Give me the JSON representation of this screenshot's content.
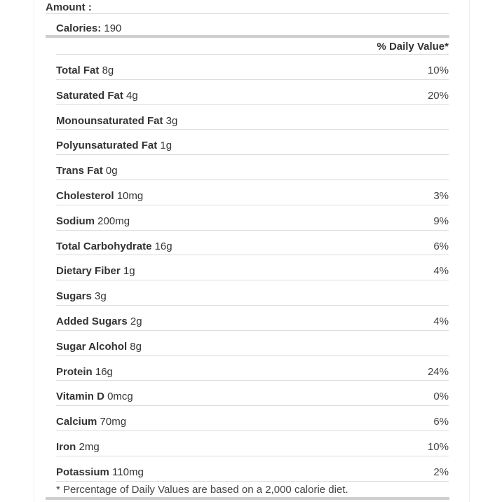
{
  "amount_label": "Amount :",
  "calories": {
    "label": "Calories:",
    "value": "190"
  },
  "daily_value_header": "% Daily Value*",
  "nutrients": [
    {
      "name": "Total Fat",
      "amount": "8g",
      "dv": "10%"
    },
    {
      "name": "Saturated Fat",
      "amount": "4g",
      "dv": "20%"
    },
    {
      "name": "Monounsaturated Fat",
      "amount": "3g",
      "dv": ""
    },
    {
      "name": "Polyunsaturated Fat",
      "amount": "1g",
      "dv": ""
    },
    {
      "name": "Trans Fat",
      "amount": "0g",
      "dv": ""
    },
    {
      "name": "Cholesterol",
      "amount": "10mg",
      "dv": "3%"
    },
    {
      "name": "Sodium",
      "amount": "200mg",
      "dv": "9%"
    },
    {
      "name": "Total Carbohydrate",
      "amount": "16g",
      "dv": "6%"
    },
    {
      "name": "Dietary Fiber",
      "amount": "1g",
      "dv": "4%"
    },
    {
      "name": "Sugars",
      "amount": "3g",
      "dv": ""
    },
    {
      "name": "Added Sugars",
      "amount": "2g",
      "dv": "4%"
    },
    {
      "name": "Sugar Alcohol",
      "amount": "8g",
      "dv": ""
    },
    {
      "name": "Protein",
      "amount": "16g",
      "dv": "24%"
    },
    {
      "name": "Vitamin D",
      "amount": "0mcg",
      "dv": "0%"
    },
    {
      "name": "Calcium",
      "amount": "70mg",
      "dv": "6%"
    },
    {
      "name": "Iron",
      "amount": "2mg",
      "dv": "10%"
    },
    {
      "name": "Potassium",
      "amount": "110mg",
      "dv": "2%"
    }
  ],
  "footnote": "* Percentage of Daily Values are based on a 2,000 calorie diet."
}
